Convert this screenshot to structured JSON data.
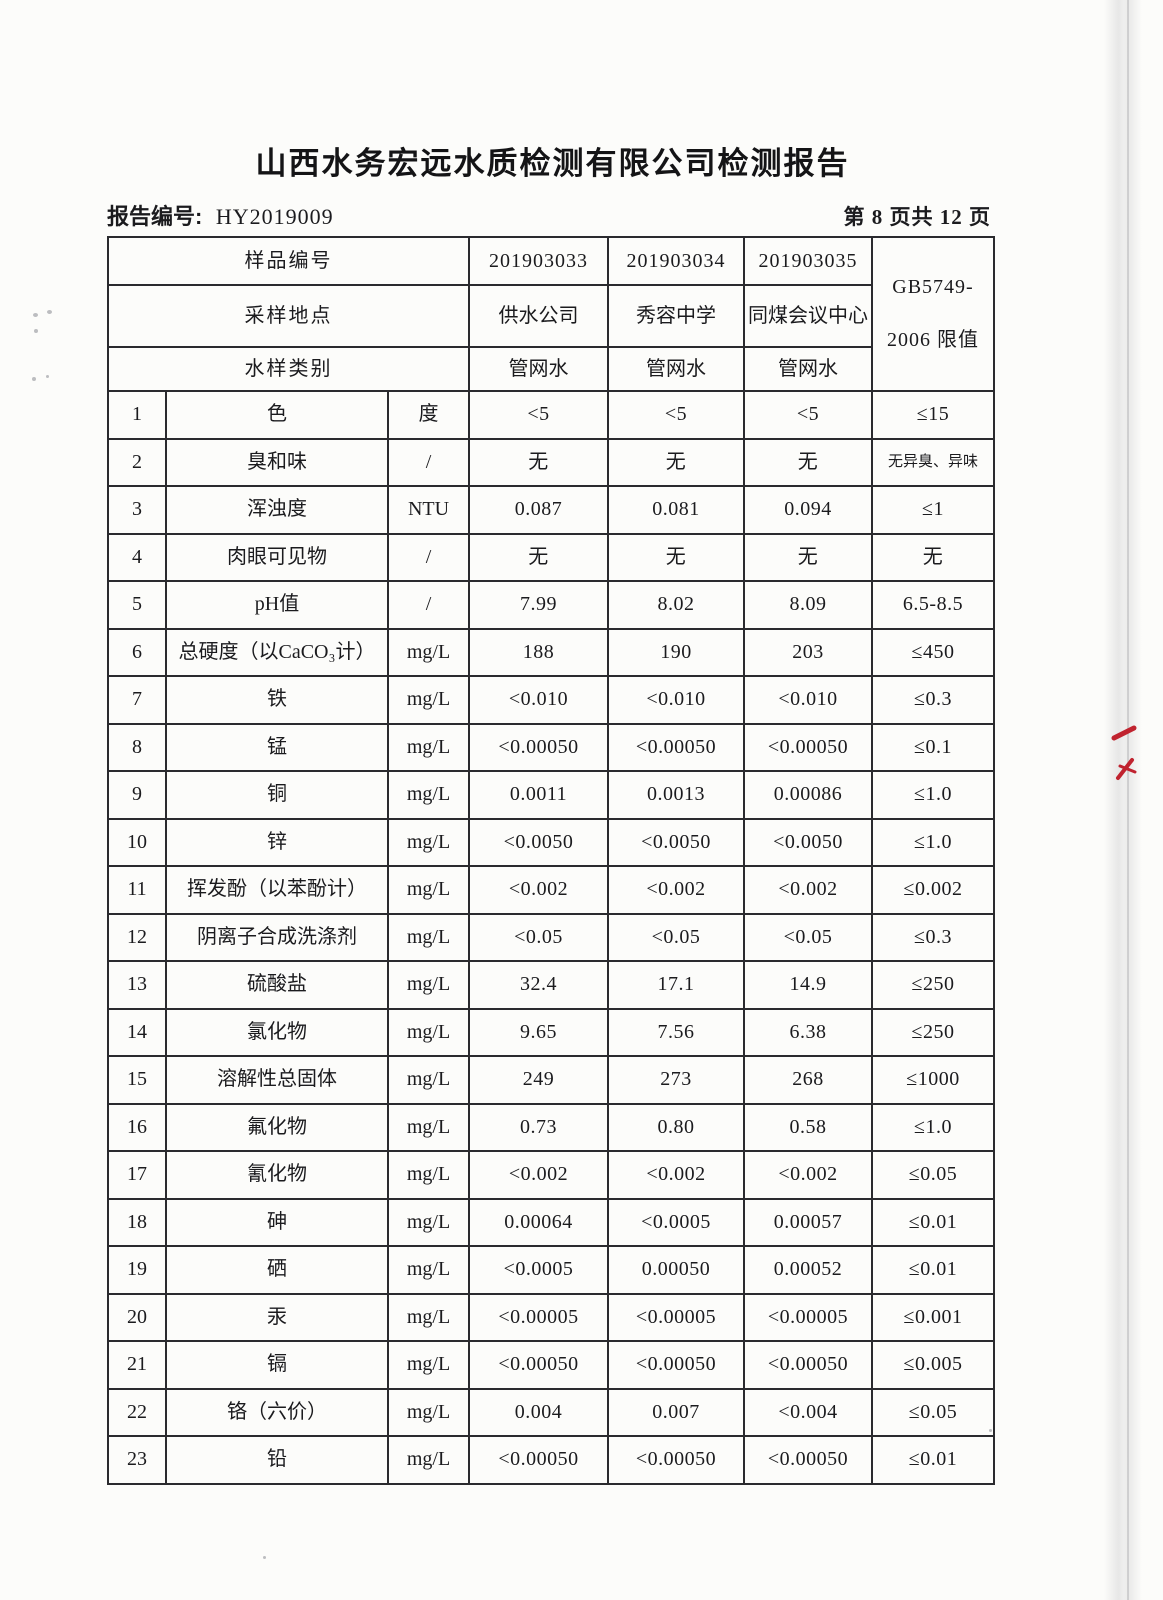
{
  "page": {
    "title": "山西水务宏远水质检测有限公司检测报告",
    "report_no_label": "报告编号:",
    "report_no_value": "HY2019009",
    "page_info": "第 8 页共 12 页"
  },
  "table": {
    "header": {
      "row1_label": "样品编号",
      "row2_label": "采样地点",
      "row3_label": "水样类别",
      "sample_ids": [
        "201903033",
        "201903034",
        "201903035"
      ],
      "sample_sites": [
        "供水公司",
        "秀容中学",
        "同煤会议中心"
      ],
      "sample_types": [
        "管网水",
        "管网水",
        "管网水"
      ],
      "limit_label_line1": "GB5749-",
      "limit_label_line2": "2006 限值"
    },
    "rows": [
      {
        "no": "1",
        "name": "色",
        "unit": "度",
        "values": [
          "<5",
          "<5",
          "<5"
        ],
        "limit": "≤15"
      },
      {
        "no": "2",
        "name": "臭和味",
        "unit": "/",
        "values": [
          "无",
          "无",
          "无"
        ],
        "limit": "无异臭、异味",
        "limit_small": true
      },
      {
        "no": "3",
        "name": "浑浊度",
        "unit": "NTU",
        "values": [
          "0.087",
          "0.081",
          "0.094"
        ],
        "limit": "≤1"
      },
      {
        "no": "4",
        "name": "肉眼可见物",
        "unit": "/",
        "values": [
          "无",
          "无",
          "无"
        ],
        "limit": "无"
      },
      {
        "no": "5",
        "name": "pH值",
        "unit": "/",
        "values": [
          "7.99",
          "8.02",
          "8.09"
        ],
        "limit": "6.5-8.5"
      },
      {
        "no": "6",
        "name": "总硬度（以CaCO₃计）",
        "unit": "mg/L",
        "values": [
          "188",
          "190",
          "203"
        ],
        "limit": "≤450"
      },
      {
        "no": "7",
        "name": "铁",
        "unit": "mg/L",
        "values": [
          "<0.010",
          "<0.010",
          "<0.010"
        ],
        "limit": "≤0.3"
      },
      {
        "no": "8",
        "name": "锰",
        "unit": "mg/L",
        "values": [
          "<0.00050",
          "<0.00050",
          "<0.00050"
        ],
        "limit": "≤0.1"
      },
      {
        "no": "9",
        "name": "铜",
        "unit": "mg/L",
        "values": [
          "0.0011",
          "0.0013",
          "0.00086"
        ],
        "limit": "≤1.0"
      },
      {
        "no": "10",
        "name": "锌",
        "unit": "mg/L",
        "values": [
          "<0.0050",
          "<0.0050",
          "<0.0050"
        ],
        "limit": "≤1.0"
      },
      {
        "no": "11",
        "name": "挥发酚（以苯酚计）",
        "unit": "mg/L",
        "values": [
          "<0.002",
          "<0.002",
          "<0.002"
        ],
        "limit": "≤0.002"
      },
      {
        "no": "12",
        "name": "阴离子合成洗涤剂",
        "unit": "mg/L",
        "values": [
          "<0.05",
          "<0.05",
          "<0.05"
        ],
        "limit": "≤0.3"
      },
      {
        "no": "13",
        "name": "硫酸盐",
        "unit": "mg/L",
        "values": [
          "32.4",
          "17.1",
          "14.9"
        ],
        "limit": "≤250"
      },
      {
        "no": "14",
        "name": "氯化物",
        "unit": "mg/L",
        "values": [
          "9.65",
          "7.56",
          "6.38"
        ],
        "limit": "≤250"
      },
      {
        "no": "15",
        "name": "溶解性总固体",
        "unit": "mg/L",
        "values": [
          "249",
          "273",
          "268"
        ],
        "limit": "≤1000"
      },
      {
        "no": "16",
        "name": "氟化物",
        "unit": "mg/L",
        "values": [
          "0.73",
          "0.80",
          "0.58"
        ],
        "limit": "≤1.0"
      },
      {
        "no": "17",
        "name": "氰化物",
        "unit": "mg/L",
        "values": [
          "<0.002",
          "<0.002",
          "<0.002"
        ],
        "limit": "≤0.05"
      },
      {
        "no": "18",
        "name": "砷",
        "unit": "mg/L",
        "values": [
          "0.00064",
          "<0.0005",
          "0.00057"
        ],
        "limit": "≤0.01"
      },
      {
        "no": "19",
        "name": "硒",
        "unit": "mg/L",
        "values": [
          "<0.0005",
          "0.00050",
          "0.00052"
        ],
        "limit": "≤0.01"
      },
      {
        "no": "20",
        "name": "汞",
        "unit": "mg/L",
        "values": [
          "<0.00005",
          "<0.00005",
          "<0.00005"
        ],
        "limit": "≤0.001"
      },
      {
        "no": "21",
        "name": "镉",
        "unit": "mg/L",
        "values": [
          "<0.00050",
          "<0.00050",
          "<0.00050"
        ],
        "limit": "≤0.005"
      },
      {
        "no": "22",
        "name": "铬（六价）",
        "unit": "mg/L",
        "values": [
          "0.004",
          "0.007",
          "<0.004"
        ],
        "limit": "≤0.05"
      },
      {
        "no": "23",
        "name": "铅",
        "unit": "mg/L",
        "values": [
          "<0.00050",
          "<0.00050",
          "<0.00050"
        ],
        "limit": "≤0.01"
      }
    ]
  },
  "artifacts": {
    "red_ink_color": "#c0232f"
  }
}
